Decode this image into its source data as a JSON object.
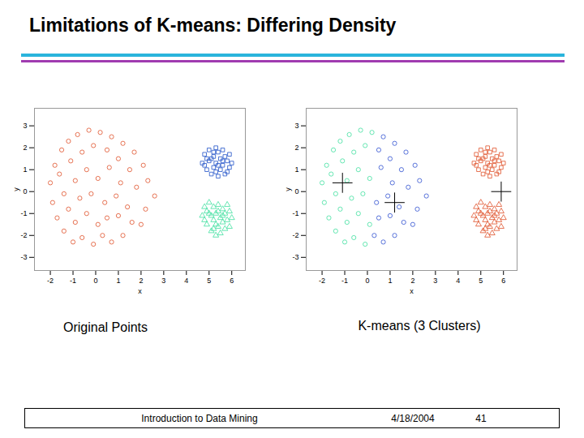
{
  "title": "Limitations of K-means: Differing Density",
  "chart_data": [
    {
      "type": "scatter",
      "title": "Original Points",
      "x_label": "x",
      "y_label": "y",
      "xlim": [
        -2.7,
        6.6
      ],
      "ylim": [
        -3.6,
        3.8
      ],
      "xticks": [
        -2,
        -1,
        0,
        1,
        2,
        3,
        4,
        5,
        6
      ],
      "yticks": [
        -3,
        -2,
        -1,
        0,
        1,
        2,
        3
      ],
      "series": [
        {
          "color": "#e0502a",
          "marker": "circle",
          "x": [
            -1.8,
            -1.5,
            -1.2,
            -0.8,
            -0.3,
            0.2,
            0.7,
            1.2,
            1.7,
            2.1,
            -2.0,
            -1.6,
            -1.1,
            -0.6,
            -0.1,
            0.5,
            1.0,
            1.5,
            2.3,
            2.6,
            -1.9,
            -1.4,
            -0.9,
            -0.4,
            0.1,
            0.6,
            1.1,
            1.8,
            2.2,
            2.0,
            -1.7,
            -1.2,
            -0.7,
            -0.2,
            0.4,
            0.9,
            1.4,
            1.6,
            1.2,
            0.7,
            -1.4,
            -0.9,
            -0.4,
            0.1,
            0.5,
            1.0,
            -0.6,
            -0.1,
            0.3,
            -1.0
          ],
          "y": [
            1.2,
            1.9,
            2.3,
            2.6,
            2.8,
            2.7,
            2.5,
            2.2,
            1.8,
            1.2,
            0.4,
            0.8,
            1.4,
            1.8,
            2.1,
            1.9,
            1.5,
            1.0,
            0.5,
            -0.2,
            -0.5,
            -0.1,
            0.5,
            1.0,
            0.6,
            1.1,
            0.4,
            0.2,
            -0.8,
            -1.5,
            -1.2,
            -0.8,
            -0.3,
            -0.1,
            -0.5,
            -0.2,
            -0.7,
            -1.4,
            -2.0,
            -2.3,
            -1.8,
            -1.4,
            -1.0,
            -1.5,
            -1.2,
            -1.1,
            -2.1,
            -2.4,
            -2.0,
            -2.3
          ]
        },
        {
          "color": "#2050c8",
          "marker": "square",
          "x": [
            4.7,
            4.8,
            4.9,
            5.0,
            5.0,
            5.1,
            5.2,
            5.2,
            5.3,
            5.3,
            5.4,
            5.4,
            5.5,
            5.5,
            5.6,
            5.6,
            5.7,
            5.7,
            5.8,
            5.9,
            5.9,
            6.0,
            4.8,
            5.1,
            5.3,
            5.6,
            5.4,
            5.2,
            5.8,
            4.9
          ],
          "y": [
            1.3,
            1.7,
            1.0,
            1.9,
            1.4,
            0.8,
            1.6,
            1.1,
            2.0,
            1.3,
            0.7,
            1.8,
            1.5,
            1.0,
            1.9,
            1.2,
            0.8,
            1.6,
            1.4,
            1.1,
            1.7,
            1.3,
            1.2,
            1.5,
            0.9,
            1.4,
            1.2,
            1.8,
            0.9,
            1.5
          ]
        },
        {
          "color": "#40e0a0",
          "marker": "triangle",
          "x": [
            4.7,
            4.8,
            4.9,
            5.0,
            5.0,
            5.1,
            5.2,
            5.2,
            5.3,
            5.3,
            5.4,
            5.4,
            5.5,
            5.5,
            5.6,
            5.6,
            5.7,
            5.7,
            5.8,
            5.9,
            5.9,
            6.0,
            4.8,
            5.1,
            5.3,
            5.6,
            5.4,
            5.2,
            5.8,
            4.9
          ],
          "y": [
            -1.1,
            -0.7,
            -1.5,
            -0.5,
            -1.0,
            -1.8,
            -0.7,
            -1.3,
            -2.0,
            -1.0,
            -1.6,
            -0.6,
            -1.2,
            -1.9,
            -0.8,
            -1.4,
            -1.7,
            -1.0,
            -1.3,
            -0.9,
            -1.6,
            -1.2,
            -1.3,
            -1.1,
            -1.5,
            -1.1,
            -0.9,
            -1.7,
            -0.6,
            -0.9
          ]
        }
      ]
    },
    {
      "type": "scatter",
      "title": "K-means (3 Clusters)",
      "x_label": "x",
      "y_label": "y",
      "xlim": [
        -2.7,
        6.6
      ],
      "ylim": [
        -3.6,
        3.8
      ],
      "xticks": [
        -2,
        -1,
        0,
        1,
        2,
        3,
        4,
        5,
        6
      ],
      "yticks": [
        -3,
        -2,
        -1,
        0,
        1,
        2,
        3
      ],
      "series": [
        {
          "color": "#40e0a0",
          "marker": "circle",
          "x": [
            -1.8,
            -1.5,
            -1.2,
            -0.8,
            -0.3,
            0.2,
            -2.0,
            -1.6,
            -1.1,
            -0.6,
            -0.1,
            -1.9,
            -1.4,
            -0.9,
            -0.4,
            0.1,
            -1.7,
            -1.2,
            -0.7,
            -0.2,
            -1.4,
            -0.9,
            -0.4,
            0.1,
            -0.6,
            -0.1,
            -1.0
          ],
          "y": [
            1.2,
            1.9,
            2.3,
            2.6,
            2.8,
            2.7,
            0.4,
            0.8,
            1.4,
            1.8,
            2.1,
            -0.5,
            -0.1,
            0.5,
            1.0,
            0.6,
            -1.2,
            -0.8,
            -0.3,
            -0.1,
            -1.8,
            -1.4,
            -1.0,
            -1.5,
            -2.1,
            -2.4,
            -2.3
          ]
        },
        {
          "color": "#3050d0",
          "marker": "circle",
          "x": [
            0.7,
            1.2,
            1.7,
            2.1,
            0.5,
            1.0,
            1.5,
            2.3,
            2.6,
            0.6,
            1.1,
            1.8,
            2.2,
            2.0,
            0.4,
            0.9,
            1.4,
            1.6,
            1.2,
            0.7,
            0.5,
            1.0,
            0.3
          ],
          "y": [
            2.5,
            2.2,
            1.8,
            1.2,
            1.9,
            1.5,
            1.0,
            0.5,
            -0.2,
            1.1,
            0.4,
            0.2,
            -0.8,
            -1.5,
            -0.5,
            -0.2,
            -0.7,
            -1.4,
            -2.0,
            -2.3,
            -1.2,
            -1.1,
            -2.0
          ]
        },
        {
          "color": "#e0502a",
          "marker": "square",
          "x": [
            4.7,
            4.8,
            4.9,
            5.0,
            5.0,
            5.1,
            5.2,
            5.2,
            5.3,
            5.3,
            5.4,
            5.4,
            5.5,
            5.5,
            5.6,
            5.6,
            5.7,
            5.7,
            5.8,
            5.9,
            5.9,
            6.0,
            4.8,
            5.1,
            5.3,
            5.6,
            5.4,
            5.2,
            5.8,
            4.9
          ],
          "y": [
            1.3,
            1.7,
            1.0,
            1.9,
            1.4,
            0.8,
            1.6,
            1.1,
            2.0,
            1.3,
            0.7,
            1.8,
            1.5,
            1.0,
            1.9,
            1.2,
            0.8,
            1.6,
            1.4,
            1.1,
            1.7,
            1.3,
            1.2,
            1.5,
            0.9,
            1.4,
            1.2,
            1.8,
            0.9,
            1.5
          ]
        },
        {
          "color": "#e0502a",
          "marker": "triangle",
          "x": [
            4.7,
            4.8,
            4.9,
            5.0,
            5.0,
            5.1,
            5.2,
            5.2,
            5.3,
            5.3,
            5.4,
            5.4,
            5.5,
            5.5,
            5.6,
            5.6,
            5.7,
            5.7,
            5.8,
            5.9,
            5.9,
            6.0,
            4.8,
            5.1,
            5.3,
            5.6,
            5.4,
            5.2,
            5.8,
            4.9
          ],
          "y": [
            -1.1,
            -0.7,
            -1.5,
            -0.5,
            -1.0,
            -1.8,
            -0.7,
            -1.3,
            -2.0,
            -1.0,
            -1.6,
            -0.6,
            -1.2,
            -1.9,
            -0.8,
            -1.4,
            -1.7,
            -1.0,
            -1.3,
            -0.9,
            -1.6,
            -1.2,
            -1.3,
            -1.1,
            -1.5,
            -1.1,
            -0.9,
            -1.7,
            -0.6,
            -0.9
          ]
        },
        {
          "color": "#000000",
          "marker": "plus",
          "x": [
            -1.1,
            1.2,
            5.9
          ],
          "y": [
            0.4,
            -0.5,
            0.0
          ]
        }
      ]
    }
  ],
  "footer": {
    "left": "Introduction to Data Mining",
    "date": "4/18/2004",
    "page": "41"
  }
}
